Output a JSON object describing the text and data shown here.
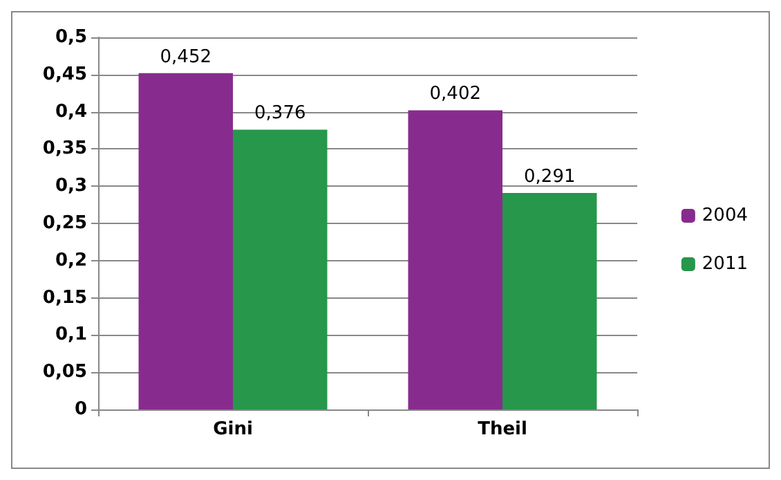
{
  "chart_data": {
    "type": "bar",
    "categories": [
      "Gini",
      "Theil"
    ],
    "series": [
      {
        "name": "2004",
        "color": "#872c8e",
        "values": [
          0.452,
          0.402
        ],
        "value_labels": [
          "0,452",
          "0,402"
        ]
      },
      {
        "name": "2011",
        "color": "#26974b",
        "values": [
          0.376,
          0.291
        ],
        "value_labels": [
          "0,376",
          "0,291"
        ]
      }
    ],
    "ylim": [
      0,
      0.5
    ],
    "yticks": [
      {
        "value": 0,
        "label": "0"
      },
      {
        "value": 0.05,
        "label": "0,05"
      },
      {
        "value": 0.1,
        "label": "0,1"
      },
      {
        "value": 0.15,
        "label": "0,15"
      },
      {
        "value": 0.2,
        "label": "0,2"
      },
      {
        "value": 0.25,
        "label": "0,25"
      },
      {
        "value": 0.3,
        "label": "0,3"
      },
      {
        "value": 0.35,
        "label": "0,35"
      },
      {
        "value": 0.4,
        "label": "0,4"
      },
      {
        "value": 0.45,
        "label": "0,45"
      },
      {
        "value": 0.5,
        "label": "0,5"
      }
    ],
    "grid": "y",
    "legend": "right"
  }
}
